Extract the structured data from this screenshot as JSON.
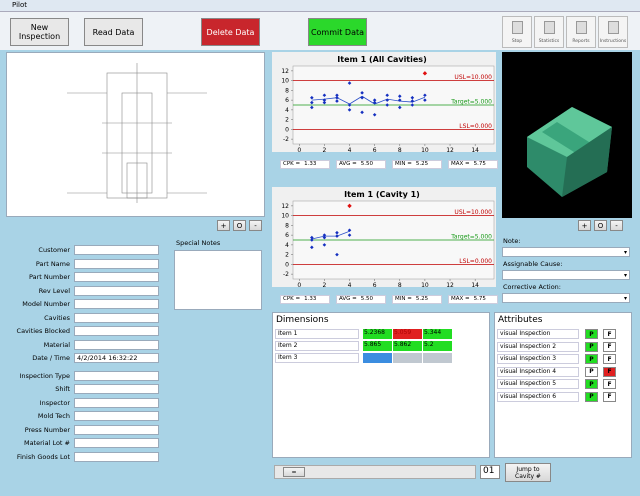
{
  "window_title": "Pilot",
  "toolbar": {
    "buttons": [
      "New Inspection",
      "Read Data",
      "Delete Data",
      "Commit Data"
    ],
    "button_colors": [
      "#e8e8e8",
      "#e8e8e8",
      "#c8262c",
      "#2bd82b"
    ],
    "icons": [
      "Stop",
      "Statistics",
      "Reports",
      "Instructions"
    ]
  },
  "zoom_buttons": [
    "+",
    "O",
    "-"
  ],
  "form": {
    "labels": [
      "Customer",
      "Part Name",
      "Part Number",
      "Rev Level",
      "Model Number",
      "Cavities",
      "Cavities Blocked",
      "Material",
      "Date / Time",
      "Inspection Type",
      "Shift",
      "Inspector",
      "Mold Tech",
      "Press Number",
      "Material Lot #",
      "Finish Goods Lot"
    ],
    "date_time": "4/2/2014 16:32:22"
  },
  "special_notes": "Special Notes",
  "charts": [
    {
      "title": "Item 1 (All Cavities)",
      "xlim": [
        -0.5,
        15.5
      ],
      "ylim": [
        -3,
        13
      ],
      "xticks": [
        0,
        2,
        4,
        6,
        8,
        10,
        12,
        14
      ],
      "yticks": [
        -2,
        0,
        2,
        4,
        6,
        8,
        10,
        12
      ],
      "limits": [
        {
          "value": 10,
          "label": "USL=10.000",
          "color": "#c00000"
        },
        {
          "value": 5,
          "label": "Target=5.000",
          "color": "#1a9a1a"
        },
        {
          "value": 0,
          "label": "LSL=0.000",
          "color": "#c00000"
        }
      ],
      "line": {
        "x": [
          1,
          2,
          3,
          4,
          5,
          6,
          7,
          8,
          9,
          10
        ],
        "y": [
          6,
          6.2,
          6.5,
          5.2,
          6.8,
          5.2,
          6.2,
          5.8,
          5.6,
          6.6
        ]
      },
      "points": {
        "x": [
          1,
          1,
          1,
          2,
          2,
          2,
          3,
          3,
          3,
          4,
          4,
          4,
          5,
          5,
          5,
          6,
          6,
          6,
          7,
          7,
          7,
          8,
          8,
          8,
          9,
          9,
          9,
          10,
          10
        ],
        "y": [
          6.5,
          5.5,
          4.5,
          7,
          6,
          5.5,
          7,
          6.5,
          5.8,
          9.5,
          5,
          4,
          7.5,
          6.5,
          3.5,
          6,
          5.5,
          3,
          7,
          6,
          5,
          6.8,
          6,
          4.5,
          6.5,
          5.8,
          5,
          7,
          6
        ]
      },
      "alarm": {
        "x": 10,
        "y": 11.5
      },
      "stats": [
        [
          "CPK =",
          "1.33"
        ],
        [
          "AVG =",
          "5.50"
        ],
        [
          "MIN =",
          "5.25"
        ],
        [
          "MAX =",
          "5.75"
        ]
      ]
    },
    {
      "title": "Item 1 (Cavity 1)",
      "xlim": [
        -0.5,
        15.5
      ],
      "ylim": [
        -3,
        13
      ],
      "xticks": [
        0,
        2,
        4,
        6,
        8,
        10,
        12,
        14
      ],
      "yticks": [
        -2,
        0,
        2,
        4,
        6,
        8,
        10,
        12
      ],
      "limits": [
        {
          "value": 10,
          "label": "USL=10.000",
          "color": "#c00000"
        },
        {
          "value": 5,
          "label": "Target=5.000",
          "color": "#1a9a1a"
        },
        {
          "value": 0,
          "label": "LSL=0.000",
          "color": "#c00000"
        }
      ],
      "line": {
        "x": [
          1,
          2,
          3,
          4
        ],
        "y": [
          5.2,
          5.8,
          5.8,
          6.8
        ]
      },
      "points": {
        "x": [
          1,
          1,
          1,
          2,
          2,
          2,
          3,
          3,
          3,
          4,
          4
        ],
        "y": [
          5.5,
          5,
          3.5,
          6,
          5.5,
          4,
          6.5,
          5.8,
          2,
          7,
          6
        ]
      },
      "alarm": {
        "x": 4,
        "y": 12
      },
      "stats": [
        [
          "CPK =",
          "1.33"
        ],
        [
          "AVG =",
          "5.50"
        ],
        [
          "MIN =",
          "5.25"
        ],
        [
          "MAX =",
          "5.75"
        ]
      ]
    }
  ],
  "side": {
    "labels": [
      "Note:",
      "Assignable Cause:",
      "Corrective Action:"
    ]
  },
  "dimensions": {
    "title": "Dimensions",
    "rows": [
      {
        "name": "Item 1",
        "cells": [
          "5.2368",
          "5.059",
          "5.344"
        ],
        "colors": [
          "#22dd22",
          "#e02020",
          "#22dd22"
        ]
      },
      {
        "name": "Item 2",
        "cells": [
          "5.865",
          "5.862",
          "5.2"
        ],
        "colors": [
          "#22dd22",
          "#22dd22",
          "#22dd22"
        ]
      },
      {
        "name": "Item 3",
        "cells": [],
        "colors": [
          "#3b8de0",
          "#c0c8d0",
          "#c0c8d0"
        ]
      }
    ]
  },
  "attributes": {
    "title": "Attributes",
    "pass": "P",
    "fail": "F",
    "rows": [
      {
        "name": "visual Inspection",
        "status": "pass"
      },
      {
        "name": "visual Inspection 2",
        "status": "pass"
      },
      {
        "name": "visual Inspection 3",
        "status": "pass"
      },
      {
        "name": "visual Inspection 4",
        "status": "fail"
      },
      {
        "name": "visual Inspection 5",
        "status": "pass"
      },
      {
        "name": "visual Inspection 6",
        "status": "pass"
      }
    ]
  },
  "navigation": {
    "cavity": "01",
    "jump_button": "Jump to Cavity #",
    "scroll_thumb": "="
  }
}
